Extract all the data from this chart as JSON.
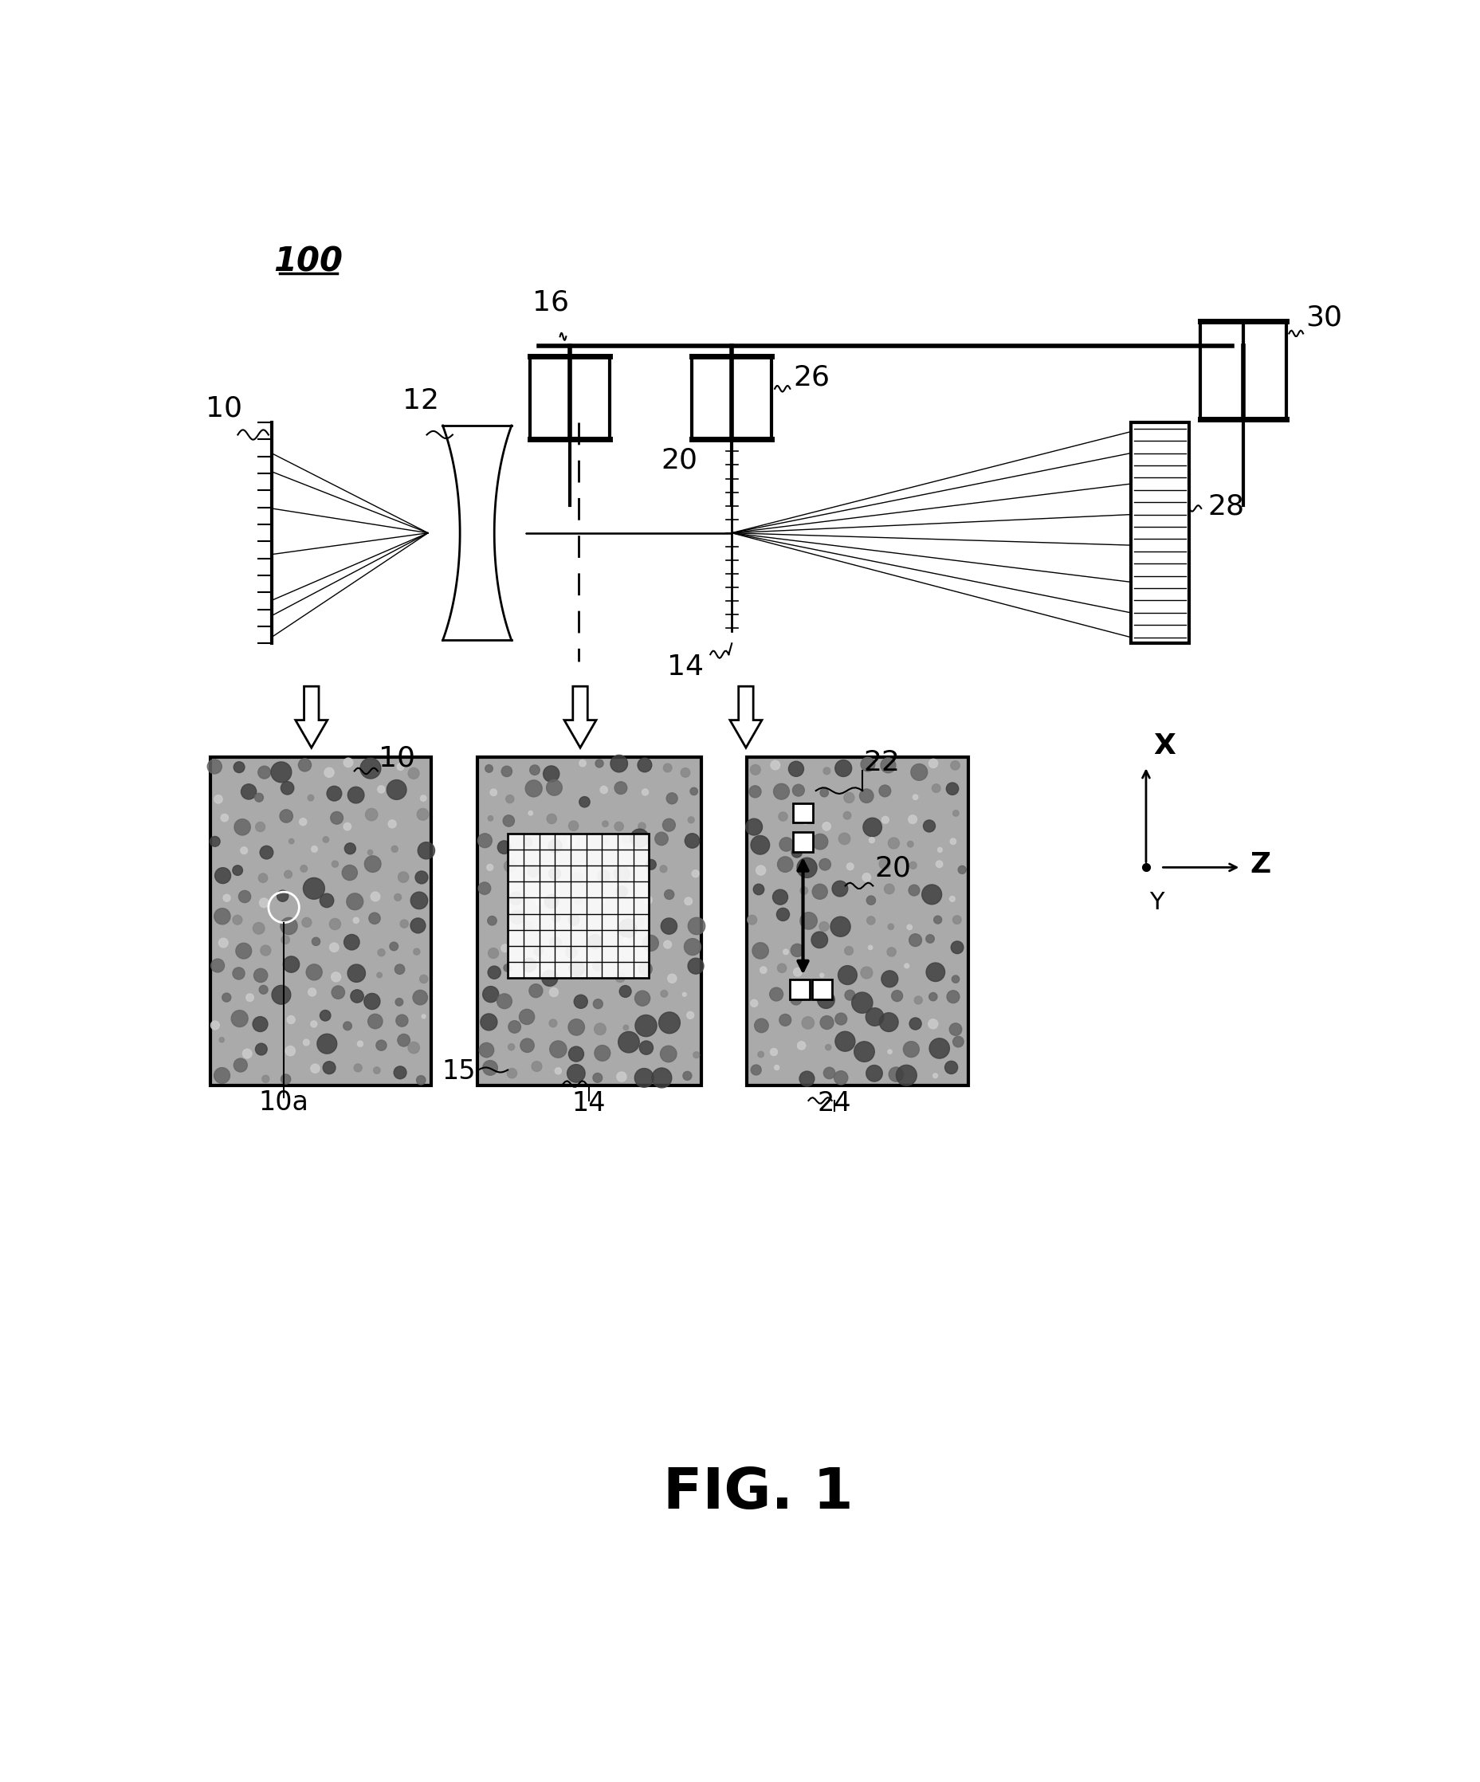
{
  "bg_color": "#ffffff",
  "line_color": "#000000",
  "title": "FIG. 1",
  "label_100": "100",
  "label_10": "10",
  "label_10a": "10a",
  "label_12": "12",
  "label_14": "14",
  "label_15": "15",
  "label_16": "16",
  "label_20": "20",
  "label_22": "22",
  "label_24": "24",
  "label_26": "26",
  "label_28": "28",
  "label_30": "30",
  "fig_w": 1857,
  "fig_h": 2236
}
